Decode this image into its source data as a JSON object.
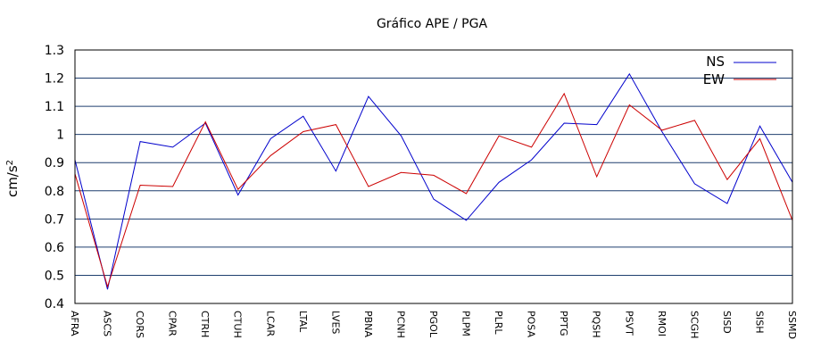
{
  "chart_data": {
    "type": "line",
    "title": "Gráfico  APE / PGA",
    "ylabel": "cm/s",
    "ylabel_sup": "2",
    "ylim": [
      0.4,
      1.3
    ],
    "yticks": [
      0.4,
      0.5,
      0.6,
      0.7,
      0.8,
      0.9,
      1,
      1.1,
      1.2,
      1.3
    ],
    "ytick_labels": [
      "0.4",
      "0.5",
      "0.6",
      "0.7",
      "0.8",
      "0.9",
      "1",
      "1.1",
      "1.2",
      "1.3"
    ],
    "grid": "horizontal",
    "legend": "top-right",
    "categories": [
      "AFRA",
      "ASCS",
      "CORS",
      "CPAR",
      "CTRH",
      "CTUH",
      "LCAR",
      "LTAL",
      "LVES",
      "PBNA",
      "PCNH",
      "PGOL",
      "PLPM",
      "PLRL",
      "POSA",
      "PPTG",
      "PQSH",
      "PSVT",
      "RMOI",
      "SCGH",
      "SISD",
      "SISH",
      "SSMD"
    ],
    "series": [
      {
        "name": "NS",
        "color": "#0000cc",
        "values": [
          0.91,
          0.45,
          0.975,
          0.955,
          1.04,
          0.785,
          0.985,
          1.065,
          0.87,
          1.135,
          0.995,
          0.77,
          0.695,
          0.83,
          0.91,
          1.04,
          1.035,
          1.215,
          1.01,
          0.825,
          0.755,
          1.03,
          0.83
        ]
      },
      {
        "name": "EW",
        "color": "#cc0000",
        "values": [
          0.86,
          0.46,
          0.82,
          0.815,
          1.045,
          0.805,
          0.925,
          1.01,
          1.035,
          0.815,
          0.865,
          0.855,
          0.79,
          0.995,
          0.955,
          1.145,
          0.85,
          1.105,
          1.015,
          1.05,
          0.84,
          0.985,
          0.695
        ]
      }
    ]
  }
}
